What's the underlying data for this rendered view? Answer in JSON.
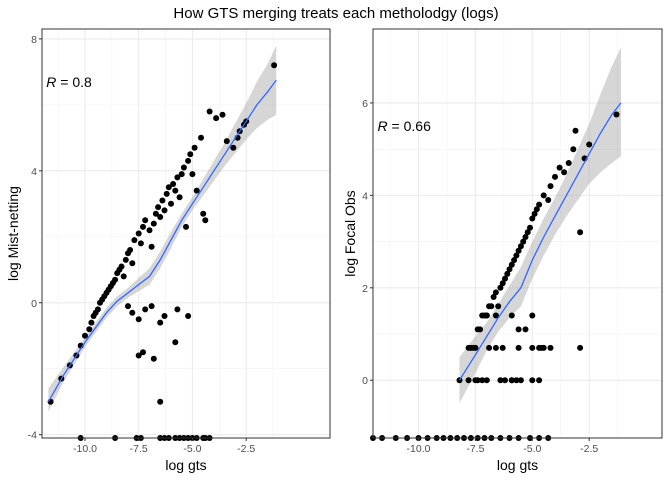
{
  "title": "How GTS merging treats each metholodgy (logs)",
  "chart_data": [
    {
      "type": "scatter",
      "xlabel": "log gts",
      "ylabel": "log Mist-netting",
      "xlim": [
        -12.0,
        1.4
      ],
      "ylim": [
        -4.1,
        8.3
      ],
      "xticks": [
        -10.0,
        -7.5,
        -5.0,
        -2.5
      ],
      "xtick_labels": [
        "-10.0",
        "-7.5",
        "-5.0",
        "-2.5"
      ],
      "yticks": [
        -4,
        0,
        4,
        8
      ],
      "ytick_labels": [
        "-4",
        "0",
        "4",
        "8"
      ],
      "grid": true,
      "annotation": {
        "prefix": "R",
        "text": " = 0.8",
        "x": -11.8,
        "y": 6.7
      },
      "trend": {
        "x": [
          -11.7,
          -11.0,
          -10.0,
          -9.0,
          -8.5,
          -8.0,
          -7.5,
          -7.0,
          -6.5,
          -6.0,
          -5.5,
          -5.0,
          -4.5,
          -4.0,
          -3.5,
          -3.0,
          -2.5,
          -2.0,
          -1.5,
          -1.1
        ],
        "y": [
          -3.0,
          -2.2,
          -1.2,
          -0.3,
          0.05,
          0.3,
          0.55,
          0.8,
          1.3,
          1.9,
          2.5,
          3.0,
          3.5,
          4.0,
          4.5,
          5.0,
          5.5,
          6.0,
          6.4,
          6.75
        ],
        "lo": [
          -3.3,
          -2.4,
          -1.35,
          -0.45,
          -0.1,
          0.15,
          0.35,
          0.55,
          1.05,
          1.65,
          2.3,
          2.8,
          3.25,
          3.7,
          4.15,
          4.55,
          4.95,
          5.3,
          5.55,
          5.7
        ],
        "hi": [
          -2.6,
          -1.95,
          -1.05,
          -0.15,
          0.2,
          0.45,
          0.75,
          1.05,
          1.55,
          2.15,
          2.7,
          3.2,
          3.75,
          4.3,
          4.85,
          5.45,
          6.05,
          6.7,
          7.25,
          7.8
        ]
      },
      "x": [
        -11.6,
        -11.1,
        -10.7,
        -10.4,
        -10.2,
        -10.0,
        -9.8,
        -9.7,
        -9.6,
        -9.5,
        -9.4,
        -9.3,
        -9.2,
        -9.1,
        -9.0,
        -8.9,
        -8.8,
        -8.7,
        -8.6,
        -8.5,
        -8.4,
        -8.3,
        -8.2,
        -8.1,
        -8.0,
        -7.9,
        -7.8,
        -7.7,
        -7.5,
        -7.4,
        -7.3,
        -7.2,
        -7.0,
        -6.9,
        -6.8,
        -6.7,
        -6.6,
        -6.5,
        -6.4,
        -6.3,
        -6.2,
        -6.1,
        -6.0,
        -5.9,
        -5.8,
        -5.7,
        -5.6,
        -5.5,
        -5.4,
        -5.3,
        -5.2,
        -5.1,
        -5.0,
        -4.9,
        -4.8,
        -4.6,
        -4.5,
        -4.4,
        -4.2,
        -3.9,
        -3.6,
        -3.4,
        -3.1,
        -2.9,
        -2.8,
        -2.6,
        -2.5,
        -1.2,
        -8.0,
        -7.8,
        -7.5,
        -7.2,
        -6.9,
        -6.8,
        -6.5,
        -6.3,
        -5.8,
        -5.7,
        -5.2,
        -7.5,
        -6.5,
        -7.3,
        -10.2,
        -8.6,
        -7.6,
        -7.4,
        -6.5,
        -6.3,
        -6.1,
        -5.8,
        -5.6,
        -5.4,
        -5.2,
        -5.0,
        -4.8,
        -4.5,
        -4.4,
        -4.2
      ],
      "y": [
        -3.0,
        -2.3,
        -1.9,
        -1.6,
        -1.3,
        -1.0,
        -0.8,
        -0.6,
        -0.4,
        -0.3,
        -0.2,
        0.0,
        0.1,
        0.2,
        0.3,
        0.4,
        0.5,
        0.6,
        0.7,
        0.9,
        1.0,
        1.1,
        0.8,
        1.3,
        1.5,
        1.6,
        1.2,
        1.9,
        2.1,
        1.8,
        2.3,
        2.5,
        2.2,
        1.7,
        2.4,
        2.7,
        2.9,
        2.6,
        3.1,
        2.8,
        3.3,
        3.5,
        3.0,
        3.6,
        3.4,
        3.8,
        3.2,
        3.9,
        4.1,
        2.3,
        4.3,
        4.5,
        3.9,
        4.7,
        3.4,
        5.0,
        2.7,
        2.5,
        5.8,
        5.6,
        5.7,
        4.9,
        4.7,
        5.0,
        5.2,
        5.4,
        5.5,
        7.2,
        -0.1,
        -0.3,
        -0.5,
        -0.2,
        -0.1,
        -1.7,
        -0.6,
        -0.4,
        -1.2,
        -0.2,
        -0.4,
        -1.6,
        -3.0,
        -1.5,
        -4.1,
        -4.1,
        -4.1,
        -4.1,
        -4.1,
        -4.1,
        -4.1,
        -4.1,
        -4.1,
        -4.1,
        -4.1,
        -4.1,
        -4.1,
        -4.1,
        -4.1,
        -4.1
      ]
    },
    {
      "type": "scatter",
      "xlabel": "log gts",
      "ylabel": "log Focal Obs",
      "xlim": [
        -12.0,
        0.7
      ],
      "ylim": [
        -1.25,
        7.6
      ],
      "xticks": [
        -10.0,
        -7.5,
        -5.0,
        -2.5
      ],
      "xtick_labels": [
        "-10.0",
        "-7.5",
        "-5.0",
        "-2.5"
      ],
      "yticks": [
        0,
        2,
        4,
        6
      ],
      "ytick_labels": [
        "0",
        "2",
        "4",
        "6"
      ],
      "grid": true,
      "annotation": {
        "prefix": "R",
        "text": " = 0.66",
        "x": -11.8,
        "y": 5.5
      },
      "trend": {
        "x": [
          -8.2,
          -7.5,
          -7.0,
          -6.5,
          -6.0,
          -5.5,
          -5.0,
          -4.5,
          -4.0,
          -3.5,
          -3.0,
          -2.5,
          -2.0,
          -1.5,
          -1.1
        ],
        "y": [
          0.0,
          0.55,
          0.95,
          1.35,
          1.7,
          2.0,
          2.6,
          3.1,
          3.55,
          4.0,
          4.45,
          4.9,
          5.35,
          5.75,
          6.0
        ],
        "lo": [
          -0.5,
          0.15,
          0.65,
          1.05,
          1.35,
          1.6,
          2.2,
          2.7,
          3.15,
          3.55,
          3.9,
          4.25,
          4.5,
          4.7,
          4.85
        ],
        "hi": [
          0.5,
          0.95,
          1.25,
          1.65,
          2.05,
          2.45,
          3.0,
          3.5,
          3.95,
          4.45,
          5.0,
          5.55,
          6.2,
          6.8,
          7.2
        ]
      },
      "x": [
        -8.2,
        -7.8,
        -7.6,
        -7.5,
        -7.4,
        -7.3,
        -7.2,
        -7.1,
        -7.0,
        -6.9,
        -6.8,
        -6.7,
        -6.6,
        -6.5,
        -6.4,
        -6.3,
        -6.2,
        -6.1,
        -6.0,
        -5.9,
        -5.8,
        -5.7,
        -5.6,
        -5.5,
        -5.4,
        -5.3,
        -5.2,
        -5.1,
        -5.0,
        -4.9,
        -4.8,
        -4.7,
        -4.5,
        -4.3,
        -4.2,
        -4.0,
        -3.8,
        -3.6,
        -3.4,
        -3.2,
        -3.1,
        -2.9,
        -2.7,
        -2.5,
        -1.3,
        -7.7,
        -7.0,
        -6.6,
        -6.3,
        -5.9,
        -5.6,
        -5.0,
        -4.6,
        -7.5,
        -7.0,
        -6.6,
        -6.4,
        -5.9,
        -5.6,
        -5.3,
        -5.0,
        -4.7,
        -4.5,
        -4.2,
        -2.9,
        -7.8,
        -7.4,
        -7.2,
        -6.9,
        -6.2,
        -5.9,
        -5.7,
        -5.5,
        -5.0,
        -4.7,
        -12.0,
        -11.6,
        -11.0,
        -10.5,
        -10.0,
        -9.6,
        -9.2,
        -8.9,
        -8.6,
        -8.3,
        -8.0,
        -7.7,
        -7.4,
        -7.1,
        -6.8,
        -6.4,
        -6.0,
        -5.6,
        -5.1,
        -4.7,
        -4.3
      ],
      "y": [
        0.0,
        0.7,
        0.7,
        0.7,
        1.1,
        1.1,
        1.4,
        1.4,
        1.4,
        1.6,
        1.6,
        1.8,
        1.9,
        1.6,
        2.0,
        2.1,
        2.2,
        2.3,
        2.4,
        2.5,
        2.6,
        2.7,
        2.8,
        2.9,
        3.0,
        3.1,
        3.2,
        3.3,
        3.5,
        3.6,
        3.7,
        3.8,
        4.0,
        3.9,
        4.2,
        4.4,
        4.6,
        4.5,
        4.7,
        5.0,
        5.4,
        3.2,
        4.8,
        5.1,
        5.75,
        0.7,
        1.4,
        1.4,
        0.7,
        1.4,
        0.7,
        1.4,
        0.7,
        0.0,
        0.0,
        0.7,
        0.0,
        0.0,
        1.1,
        1.1,
        0.7,
        0.7,
        0.7,
        0.7,
        0.7,
        0.0,
        0.0,
        0.0,
        0.7,
        0.0,
        0.0,
        0.0,
        0.0,
        0.0,
        0.0,
        -1.25,
        -1.25,
        -1.25,
        -1.25,
        -1.25,
        -1.25,
        -1.25,
        -1.25,
        -1.25,
        -1.25,
        -1.25,
        -1.25,
        -1.25,
        -1.25,
        -1.25,
        -1.25,
        -1.25,
        -1.25,
        -1.25,
        -1.25,
        -1.25
      ]
    }
  ]
}
